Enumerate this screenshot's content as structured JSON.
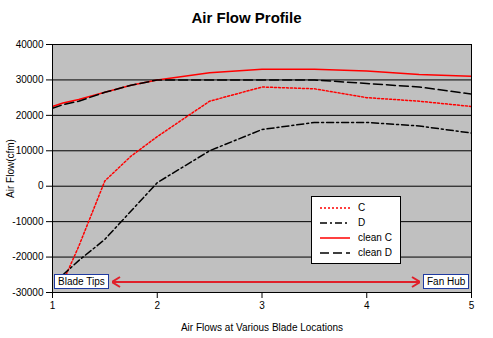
{
  "chart_data": {
    "type": "line",
    "title": "Air Flow Profile",
    "x_label": "Air Flows at Various Blade Locations",
    "y_label": "Air Flow(cfm)",
    "x": [
      1,
      1.1,
      1.25,
      1.5,
      1.75,
      2,
      2.5,
      3,
      3.5,
      4,
      4.5,
      5
    ],
    "series": [
      {
        "name": "C",
        "color": "#ff0000",
        "line_style": "dotted",
        "values": [
          null,
          -27000,
          -17000,
          1500,
          8500,
          14000,
          24000,
          28000,
          27500,
          25000,
          24000,
          22500
        ]
      },
      {
        "name": "D",
        "color": "#000000",
        "line_style": "dashdot",
        "values": [
          null,
          -25000,
          -21000,
          -15000,
          -7000,
          1000,
          10000,
          16000,
          18000,
          18000,
          17000,
          15000
        ]
      },
      {
        "name": "clean C",
        "color": "#ff0000",
        "line_style": "solid",
        "values": [
          22500,
          23500,
          24500,
          26500,
          28500,
          30000,
          32000,
          33000,
          33000,
          32500,
          31500,
          31000
        ]
      },
      {
        "name": "clean D",
        "color": "#000000",
        "line_style": "dashed",
        "values": [
          22000,
          23000,
          24000,
          26500,
          28500,
          30000,
          30000,
          30000,
          30000,
          29000,
          28000,
          26000
        ]
      }
    ],
    "xlim": [
      1,
      5
    ],
    "xticks": [
      1,
      2,
      3,
      4,
      5
    ],
    "ylim": [
      -30000,
      40000
    ],
    "yticks": [
      -30000,
      -20000,
      -10000,
      0,
      10000,
      20000,
      30000,
      40000
    ],
    "grid": true,
    "legend": "lower right",
    "annotations": [
      "Blade Tips",
      "Fan Hub"
    ]
  }
}
